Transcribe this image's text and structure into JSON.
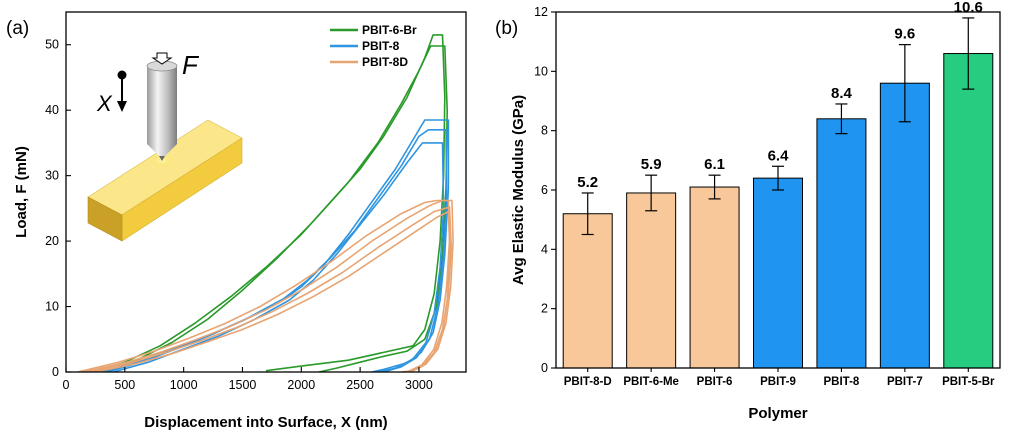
{
  "chart_data": [
    {
      "type": "line",
      "panel_label": "(a)",
      "xlabel": "Displacement into Surface, X (nm)",
      "ylabel": "Load, F (mN)",
      "xlim": [
        0,
        3400
      ],
      "ylim": [
        0,
        55
      ],
      "xticks": [
        0,
        500,
        1000,
        1500,
        2000,
        2500,
        3000
      ],
      "yticks": [
        0,
        10,
        20,
        30,
        40,
        50
      ],
      "legend_position": "top-right",
      "inset": {
        "force_symbol": "F",
        "displacement_symbol": "X"
      },
      "series": [
        {
          "name": "PBIT-6-Br",
          "color": "#2a9a2a",
          "curves": [
            {
              "load": [
                [
                  250,
                  0
                ],
                [
                  500,
                  1.5
                ],
                [
                  800,
                  4
                ],
                [
                  1100,
                  7.5
                ],
                [
                  1400,
                  11.5
                ],
                [
                  1700,
                  16
                ],
                [
                  2000,
                  21
                ],
                [
                  2300,
                  27
                ],
                [
                  2500,
                  31
                ],
                [
                  2700,
                  36
                ],
                [
                  2900,
                  42
                ],
                [
                  3050,
                  48
                ],
                [
                  3120,
                  51.5
                ],
                [
                  3200,
                  51.5
                ]
              ],
              "unload": [
                [
                  3200,
                  51.5
                ],
                [
                  3220,
                  42
                ],
                [
                  3210,
                  30
                ],
                [
                  3180,
                  20
                ],
                [
                  3130,
                  12
                ],
                [
                  3050,
                  6.5
                ],
                [
                  2950,
                  4
                ],
                [
                  2700,
                  3
                ],
                [
                  2400,
                  1.8
                ],
                [
                  2000,
                  0.9
                ],
                [
                  1700,
                  0.2
                ]
              ]
            },
            {
              "load": [
                [
                  350,
                  0
                ],
                [
                  600,
                  1.8
                ],
                [
                  900,
                  4.5
                ],
                [
                  1200,
                  8
                ],
                [
                  1500,
                  12.5
                ],
                [
                  1800,
                  17.5
                ],
                [
                  2100,
                  23
                ],
                [
                  2400,
                  29
                ],
                [
                  2650,
                  35
                ],
                [
                  2850,
                  41
                ],
                [
                  3000,
                  46
                ],
                [
                  3100,
                  49.8
                ],
                [
                  3220,
                  49.8
                ]
              ],
              "unload": [
                [
                  3220,
                  49.8
                ],
                [
                  3240,
                  40
                ],
                [
                  3230,
                  28
                ],
                [
                  3200,
                  18
                ],
                [
                  3150,
                  10
                ],
                [
                  3050,
                  5
                ],
                [
                  2900,
                  3.2
                ],
                [
                  2700,
                  2.4
                ],
                [
                  2500,
                  1.5
                ],
                [
                  2300,
                  0.6
                ],
                [
                  2150,
                  0
                ]
              ]
            }
          ]
        },
        {
          "name": "PBIT-8",
          "color": "#2f95e0",
          "curves": [
            {
              "load": [
                [
                  300,
                  0
                ],
                [
                  600,
                  1.5
                ],
                [
                  900,
                  3.5
                ],
                [
                  1200,
                  5.5
                ],
                [
                  1500,
                  7.8
                ],
                [
                  1800,
                  10.5
                ],
                [
                  2000,
                  13
                ],
                [
                  2200,
                  16.5
                ],
                [
                  2400,
                  21
                ],
                [
                  2600,
                  26
                ],
                [
                  2800,
                  31
                ],
                [
                  2950,
                  35.5
                ],
                [
                  3050,
                  38.5
                ],
                [
                  3250,
                  38.5
                ]
              ],
              "unload": [
                [
                  3250,
                  38.5
                ],
                [
                  3250,
                  28
                ],
                [
                  3220,
                  18
                ],
                [
                  3180,
                  11
                ],
                [
                  3120,
                  6
                ],
                [
                  3020,
                  3
                ],
                [
                  2900,
                  1.4
                ],
                [
                  2700,
                  0.4
                ],
                [
                  2600,
                  0
                ]
              ]
            },
            {
              "load": [
                [
                  400,
                  0
                ],
                [
                  700,
                  1.5
                ],
                [
                  1000,
                  3.5
                ],
                [
                  1300,
                  5.5
                ],
                [
                  1600,
                  8
                ],
                [
                  1900,
                  11
                ],
                [
                  2100,
                  14
                ],
                [
                  2300,
                  18
                ],
                [
                  2500,
                  22.5
                ],
                [
                  2700,
                  27
                ],
                [
                  2900,
                  32
                ],
                [
                  3030,
                  35
                ],
                [
                  3200,
                  35
                ]
              ],
              "unload": [
                [
                  3200,
                  35
                ],
                [
                  3210,
                  25
                ],
                [
                  3180,
                  16
                ],
                [
                  3130,
                  9
                ],
                [
                  3060,
                  4.5
                ],
                [
                  2950,
                  2
                ],
                [
                  2800,
                  0.6
                ],
                [
                  2650,
                  0
                ]
              ]
            },
            {
              "load": [
                [
                  350,
                  0
                ],
                [
                  650,
                  1.6
                ],
                [
                  950,
                  3.6
                ],
                [
                  1250,
                  5.8
                ],
                [
                  1550,
                  8.3
                ],
                [
                  1850,
                  11.2
                ],
                [
                  2050,
                  14
                ],
                [
                  2250,
                  17.5
                ],
                [
                  2450,
                  21.5
                ],
                [
                  2650,
                  26.5
                ],
                [
                  2850,
                  31.5
                ],
                [
                  3000,
                  36
                ],
                [
                  3080,
                  37
                ],
                [
                  3230,
                  37
                ]
              ],
              "unload": [
                [
                  3230,
                  37
                ],
                [
                  3235,
                  27
                ],
                [
                  3205,
                  17
                ],
                [
                  3160,
                  10
                ],
                [
                  3090,
                  5
                ],
                [
                  2980,
                  2.2
                ],
                [
                  2850,
                  0.8
                ],
                [
                  2700,
                  0
                ]
              ]
            }
          ]
        },
        {
          "name": "PBIT-8D",
          "color": "#e8a472",
          "curves": [
            {
              "load": [
                [
                  150,
                  0
                ],
                [
                  500,
                  1.4
                ],
                [
                  800,
                  3
                ],
                [
                  1100,
                  4.9
                ],
                [
                  1400,
                  7
                ],
                [
                  1700,
                  9.5
                ],
                [
                  2000,
                  12.5
                ],
                [
                  2300,
                  16
                ],
                [
                  2600,
                  20
                ],
                [
                  2900,
                  23.5
                ],
                [
                  3100,
                  25.5
                ],
                [
                  3200,
                  26.2
                ],
                [
                  3280,
                  26.2
                ]
              ],
              "unload": [
                [
                  3280,
                  26.2
                ],
                [
                  3290,
                  20
                ],
                [
                  3270,
                  13
                ],
                [
                  3230,
                  7.5
                ],
                [
                  3160,
                  3.5
                ],
                [
                  3060,
                  1.2
                ],
                [
                  2950,
                  0.2
                ],
                [
                  2850,
                  0
                ]
              ]
            },
            {
              "load": [
                [
                  200,
                  0
                ],
                [
                  550,
                  1.4
                ],
                [
                  850,
                  3
                ],
                [
                  1150,
                  4.8
                ],
                [
                  1450,
                  6.8
                ],
                [
                  1750,
                  9.2
                ],
                [
                  2050,
                  12
                ],
                [
                  2350,
                  15.2
                ],
                [
                  2650,
                  19
                ],
                [
                  2950,
                  22.5
                ],
                [
                  3130,
                  24.5
                ],
                [
                  3260,
                  25.2
                ]
              ],
              "unload": [
                [
                  3260,
                  25.2
                ],
                [
                  3275,
                  19
                ],
                [
                  3250,
                  12
                ],
                [
                  3210,
                  7
                ],
                [
                  3140,
                  3.2
                ],
                [
                  3040,
                  1
                ],
                [
                  2930,
                  0
                ]
              ]
            },
            {
              "load": [
                [
                  250,
                  0
                ],
                [
                  600,
                  1.3
                ],
                [
                  900,
                  2.8
                ],
                [
                  1200,
                  4.6
                ],
                [
                  1500,
                  6.5
                ],
                [
                  1800,
                  8.8
                ],
                [
                  2100,
                  11.5
                ],
                [
                  2400,
                  14.6
                ],
                [
                  2700,
                  18.2
                ],
                [
                  3000,
                  21.8
                ],
                [
                  3150,
                  23.6
                ],
                [
                  3250,
                  24.5
                ]
              ],
              "unload": [
                [
                  3250,
                  24.5
                ],
                [
                  3265,
                  18
                ],
                [
                  3240,
                  11
                ],
                [
                  3200,
                  6.5
                ],
                [
                  3130,
                  3
                ],
                [
                  3020,
                  0.8
                ],
                [
                  2900,
                  0
                ]
              ]
            },
            {
              "load": [
                [
                  100,
                  0
                ],
                [
                  450,
                  1.5
                ],
                [
                  750,
                  3.2
                ],
                [
                  1050,
                  5.2
                ],
                [
                  1350,
                  7.4
                ],
                [
                  1650,
                  10
                ],
                [
                  1950,
                  13.2
                ],
                [
                  2250,
                  16.8
                ],
                [
                  2550,
                  20.8
                ],
                [
                  2850,
                  24.2
                ],
                [
                  3050,
                  25.9
                ],
                [
                  3150,
                  26.2
                ],
                [
                  3250,
                  26.2
                ]
              ],
              "unload": [
                [
                  3250,
                  26.2
                ],
                [
                  3260,
                  20
                ],
                [
                  3235,
                  13
                ],
                [
                  3195,
                  7.5
                ],
                [
                  3125,
                  3.4
                ],
                [
                  3025,
                  1.1
                ],
                [
                  2900,
                  0
                ]
              ]
            }
          ]
        }
      ]
    },
    {
      "type": "bar",
      "panel_label": "(b)",
      "xlabel": "Polymer",
      "ylabel": "Avg Elastic Modulus (GPa)",
      "ylim": [
        0,
        12
      ],
      "yticks": [
        0,
        2,
        4,
        6,
        8,
        10,
        12
      ],
      "categories": [
        "PBIT-8-D",
        "PBIT-6-Me",
        "PBIT-6",
        "PBIT-9",
        "PBIT-8",
        "PBIT-7",
        "PBIT-5-Br"
      ],
      "values": [
        5.2,
        5.9,
        6.1,
        6.4,
        8.4,
        9.6,
        10.6
      ],
      "value_labels": [
        "5.2",
        "5.9",
        "6.1",
        "6.4",
        "8.4",
        "9.6",
        "10.6"
      ],
      "errors": [
        0.7,
        0.6,
        0.4,
        0.4,
        0.5,
        1.3,
        1.2
      ],
      "colors": [
        "#f8c89a",
        "#f8c89a",
        "#f8c89a",
        "#1f94f0",
        "#1f94f0",
        "#1f94f0",
        "#26cc80"
      ]
    }
  ]
}
